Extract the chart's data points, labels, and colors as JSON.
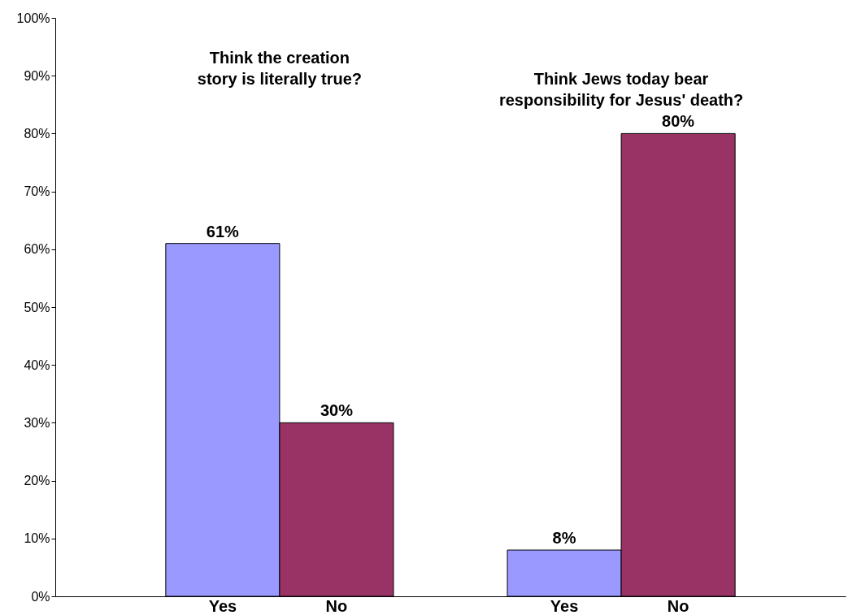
{
  "chart_data": {
    "type": "bar",
    "categories": [
      "Yes",
      "No",
      null,
      "Yes",
      "No"
    ],
    "values": [
      61,
      30,
      null,
      8,
      80
    ],
    "colors": [
      "#9999ff",
      "#993366",
      null,
      "#9999ff",
      "#993366"
    ],
    "value_labels": [
      "61%",
      "30%",
      null,
      "8%",
      "80%"
    ],
    "ylim": [
      0,
      100
    ],
    "yticks": [
      {
        "value": 0,
        "label": "0%"
      },
      {
        "value": 10,
        "label": "10%"
      },
      {
        "value": 20,
        "label": "20%"
      },
      {
        "value": 30,
        "label": "30%"
      },
      {
        "value": 40,
        "label": "40%"
      },
      {
        "value": 50,
        "label": "50%"
      },
      {
        "value": 60,
        "label": "60%"
      },
      {
        "value": 70,
        "label": "70%"
      },
      {
        "value": 80,
        "label": "80%"
      },
      {
        "value": 90,
        "label": "90%"
      },
      {
        "value": 100,
        "label": "100%"
      }
    ],
    "annotations": [
      "Think the creation\nstory is literally true?",
      "Think Jews today bear\nresponsibility for Jesus' death?"
    ],
    "grid": false
  }
}
